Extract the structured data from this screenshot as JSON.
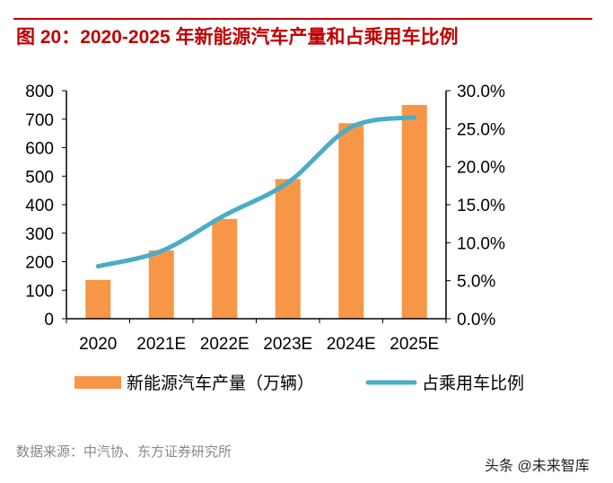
{
  "title": "图 20：2020-2025 年新能源汽车产量和占乘用车比例",
  "source": "数据来源：中汽协、东方证券研究所",
  "watermark": "头条 @未来智库",
  "chart_data": {
    "type": "bar+line",
    "categories": [
      "2020",
      "2021E",
      "2022E",
      "2023E",
      "2024E",
      "2025E"
    ],
    "series": [
      {
        "name": "新能源汽车产量（万辆）",
        "type": "bar",
        "axis": "left",
        "color": "#f79646",
        "values": [
          136,
          240,
          350,
          490,
          686,
          750
        ]
      },
      {
        "name": "占乘用车比例",
        "type": "line",
        "axis": "right",
        "color": "#4bacc6",
        "values": [
          6.9,
          8.9,
          13.6,
          17.9,
          25.2,
          26.5
        ]
      }
    ],
    "left_axis": {
      "ylim": [
        0,
        800
      ],
      "ticks": [
        "0",
        "100",
        "200",
        "300",
        "400",
        "500",
        "600",
        "700",
        "800"
      ]
    },
    "right_axis": {
      "ylim": [
        0,
        30
      ],
      "ticks": [
        "0.0%",
        "5.0%",
        "10.0%",
        "15.0%",
        "20.0%",
        "25.0%",
        "30.0%"
      ]
    },
    "legend": "bottom",
    "grid": false
  }
}
